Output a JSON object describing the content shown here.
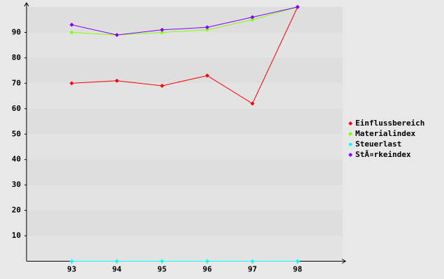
{
  "chart_data": {
    "type": "line",
    "x": [
      93,
      94,
      95,
      96,
      97,
      98
    ],
    "xlim": [
      92,
      99
    ],
    "xticks": [
      93,
      94,
      95,
      96,
      97,
      98
    ],
    "ylim": [
      0,
      100
    ],
    "yticks": [
      10,
      20,
      30,
      40,
      50,
      60,
      70,
      80,
      90
    ],
    "grid": true,
    "legend": "right",
    "series": [
      {
        "name": "Einflussbereich",
        "color": "#ff0000",
        "values": [
          70,
          71,
          69,
          73,
          62,
          100
        ]
      },
      {
        "name": "Materialindex",
        "color": "#80ff00",
        "values": [
          90,
          89,
          90,
          91,
          95,
          100
        ]
      },
      {
        "name": "Steuerlast",
        "color": "#00ffff",
        "values": [
          0,
          0,
          0,
          0,
          0,
          0
        ]
      },
      {
        "name": "StÃ¤rkeindex",
        "color": "#8000ff",
        "values": [
          93,
          89,
          91,
          92,
          96,
          100
        ]
      }
    ]
  }
}
